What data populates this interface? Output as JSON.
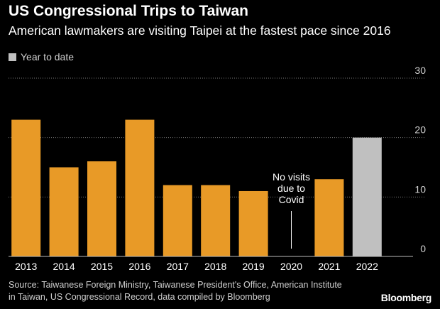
{
  "colors": {
    "bar": "#e89a27",
    "ytd": "#c0c0c0",
    "text": "#ffffff",
    "muted": "#cfcfcf",
    "grid": "#777777",
    "axis": "#bdbdbd"
  },
  "header": {
    "title": "US Congressional Trips to Taiwan",
    "subtitle": "American lawmakers are visiting Taipei at the fastest pace since 2016"
  },
  "legend": {
    "label": "Year to date"
  },
  "annotation": {
    "lines": [
      "No visits",
      "due to",
      "Covid"
    ]
  },
  "footer": {
    "source": "Source: Taiwanese Foreign Ministry, Taiwanese President's Office, American Institute in Taiwan, US Congressional Record, data compiled by Bloomberg",
    "brand": "Bloomberg"
  },
  "chart_data": {
    "type": "bar",
    "title": "US Congressional Trips to Taiwan",
    "subtitle": "American lawmakers are visiting Taipei at the fastest pace since 2016",
    "categories": [
      "2013",
      "2014",
      "2015",
      "2016",
      "2017",
      "2018",
      "2019",
      "2020",
      "2021",
      "2022"
    ],
    "values": [
      23,
      15,
      16,
      23,
      12,
      12,
      11,
      0,
      13,
      20
    ],
    "year_to_date": [
      false,
      false,
      false,
      false,
      false,
      false,
      false,
      false,
      false,
      true
    ],
    "ylim": [
      0,
      30
    ],
    "yticks": [
      0,
      10,
      20,
      30
    ],
    "y_axis_position": "right",
    "grid": true,
    "legend": [
      "Year to date"
    ]
  }
}
